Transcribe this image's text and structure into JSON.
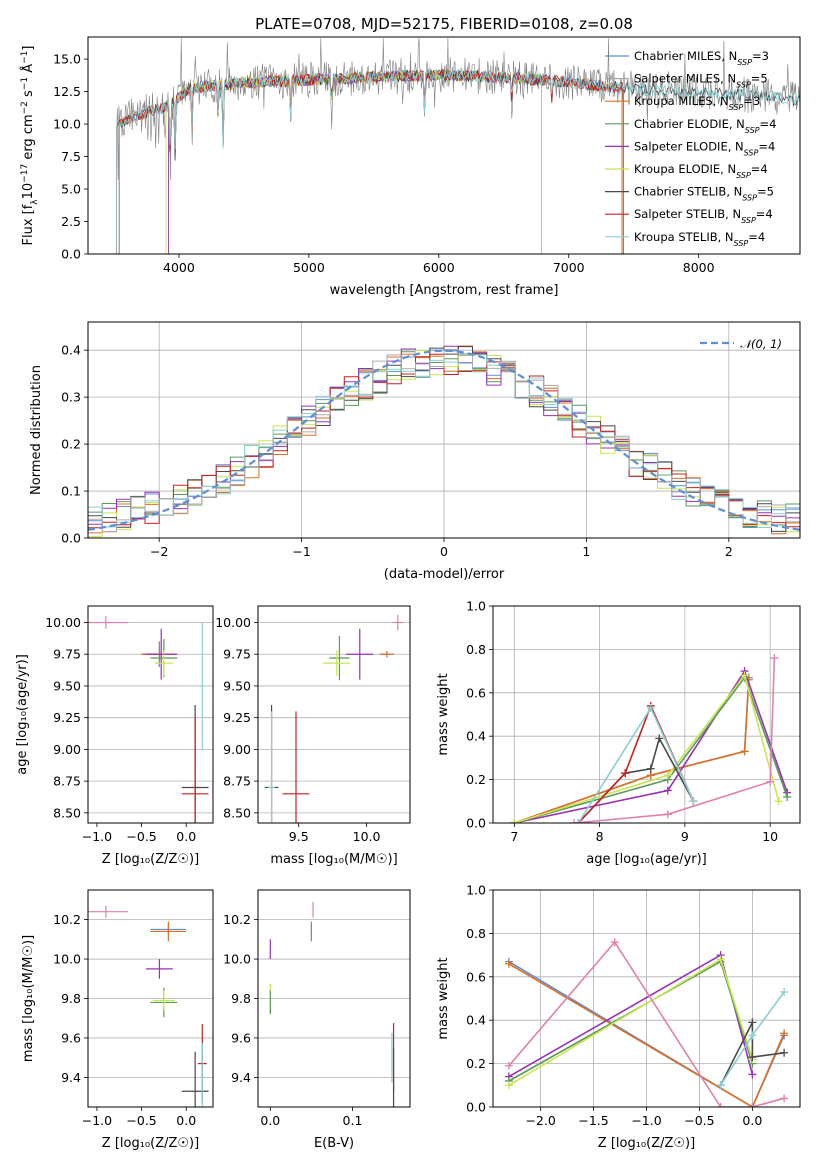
{
  "figure_title": "PLATE=0708, MJD=52175, FIBERID=0108, z=0.08",
  "colors": {
    "chabrier_miles": "#5b8fd6",
    "salpeter_miles": "#aaaaaa",
    "kroupa_miles": "#e07020",
    "chabrier_elodie": "#5a9a5a",
    "salpeter_elodie": "#9a30b8",
    "kroupa_elodie": "#c8e650",
    "chabrier_stelib": "#4a4a4a",
    "salpeter_stelib": "#cc1f1f",
    "kroupa_stelib": "#88cfd6",
    "pink": "#e080b0",
    "gray_spectrum": "#808080",
    "gauss": "#5b8fd6"
  },
  "chart_data": [
    {
      "id": "spectrum",
      "type": "line",
      "xlabel": "wavelength [Angstrom, rest frame]",
      "ylabel": "Flux [f",
      "xlim": [
        3300,
        8780
      ],
      "ylim": [
        0,
        16.7
      ],
      "xticks": [
        "4000",
        "5000",
        "6000",
        "7000",
        "8000"
      ],
      "yticks": [
        "0.0",
        "2.5",
        "5.0",
        "7.5",
        "10.0",
        "12.5",
        "15.0"
      ],
      "legend": [
        "Chabrier MILES, N_SSP=3",
        "Salpeter MILES, N_SSP=5",
        "Kroupa MILES, N_SSP=3",
        "Chabrier ELODIE, N_SSP=4",
        "Salpeter ELODIE, N_SSP=4",
        "Kroupa ELODIE, N_SSP=4",
        "Chabrier STELIB, N_SSP=5",
        "Salpeter STELIB, N_SSP=4",
        "Kroupa STELIB, N_SSP=4"
      ],
      "continuum": [
        [
          3520,
          10.0
        ],
        [
          3700,
          10.8
        ],
        [
          3900,
          11.3
        ],
        [
          4100,
          12.8
        ],
        [
          4500,
          13.2
        ],
        [
          5000,
          13.4
        ],
        [
          5500,
          13.6
        ],
        [
          6000,
          13.8
        ],
        [
          6500,
          13.6
        ],
        [
          7000,
          13.2
        ],
        [
          7400,
          12.8
        ],
        [
          8000,
          12.4
        ],
        [
          8500,
          12.2
        ],
        [
          8780,
          11.8
        ]
      ],
      "absorption_lines": [
        [
          3934,
          6.0
        ],
        [
          3969,
          7.5
        ],
        [
          4102,
          9.5
        ],
        [
          4300,
          10.8
        ],
        [
          4340,
          8.5
        ],
        [
          4861,
          10.5
        ],
        [
          5175,
          10.8
        ],
        [
          5890,
          11.0
        ],
        [
          6563,
          11.5
        ],
        [
          6870,
          12.0
        ],
        [
          7605,
          11.5
        ]
      ]
    },
    {
      "id": "residuals",
      "type": "line",
      "xlabel": "(data-model)/error",
      "ylabel": "Normed distribution",
      "xlim": [
        -2.5,
        2.5
      ],
      "ylim": [
        0,
        0.46
      ],
      "xticks": [
        "−2",
        "−1",
        "0",
        "1",
        "2"
      ],
      "yticks": [
        "0.0",
        "0.1",
        "0.2",
        "0.3",
        "0.4"
      ],
      "gauss_label": "𝒩(0, 1)",
      "grid": true
    },
    {
      "id": "age_vs_Z",
      "type": "scatter",
      "xlabel": "Z [log₁₀(Z/Z☉)]",
      "ylabel": "age  [log₁₀(age/yr)]",
      "xlim": [
        -1.1,
        0.3
      ],
      "ylim": [
        8.42,
        10.13
      ],
      "xticks": [
        "−1.0",
        "−0.5",
        "0.0"
      ],
      "yticks": [
        "8.50",
        "8.75",
        "9.00",
        "9.25",
        "9.50",
        "9.75",
        "10.00"
      ],
      "points": [
        {
          "c": "pink",
          "x": -0.9,
          "xe": 0.5,
          "y": 10.0,
          "ye": 0.1
        },
        {
          "c": "chabrier_miles",
          "x": -0.3,
          "xe": 0.4,
          "y": 9.75,
          "ye": 0.2
        },
        {
          "c": "kroupa_miles",
          "x": -0.3,
          "xe": 0.4,
          "y": 9.75,
          "ye": 0.2
        },
        {
          "c": "salpeter_elodie",
          "x": -0.28,
          "xe": 0.35,
          "y": 9.75,
          "ye": 0.4
        },
        {
          "c": "chabrier_elodie",
          "x": -0.25,
          "xe": 0.3,
          "y": 9.72,
          "ye": 0.3
        },
        {
          "c": "kroupa_elodie",
          "x": -0.25,
          "xe": 0.2,
          "y": 9.68,
          "ye": 0.2
        },
        {
          "c": "chabrier_stelib",
          "x": 0.1,
          "xe": 0.3,
          "y": 8.7,
          "ye": 1.3
        },
        {
          "c": "salpeter_stelib",
          "x": 0.1,
          "xe": 0.3,
          "y": 8.65,
          "ye": 1.2
        },
        {
          "c": "kroupa_stelib",
          "x": 0.18,
          "xe": 0.05,
          "y": 9.5,
          "ye": 1.0
        }
      ]
    },
    {
      "id": "age_vs_mass",
      "type": "scatter",
      "xlabel": "mass [log₁₀(M/M☉)]",
      "ylabel": "",
      "xlim": [
        9.2,
        10.32
      ],
      "ylim": [
        8.42,
        10.13
      ],
      "xticks": [
        "9.5",
        "10.0"
      ],
      "yticks": [
        "8.50",
        "8.75",
        "9.00",
        "9.25",
        "9.50",
        "9.75",
        "10.00"
      ],
      "points": [
        {
          "c": "pink",
          "x": 10.23,
          "xe": 0.08,
          "y": 10.0,
          "ye": 0.12
        },
        {
          "c": "chabrier_miles",
          "x": 10.15,
          "xe": 0.1,
          "y": 9.75,
          "ye": 0.05
        },
        {
          "c": "kroupa_miles",
          "x": 10.15,
          "xe": 0.1,
          "y": 9.75,
          "ye": 0.05
        },
        {
          "c": "salpeter_elodie",
          "x": 9.95,
          "xe": 0.2,
          "y": 9.75,
          "ye": 0.4
        },
        {
          "c": "chabrier_elodie",
          "x": 9.8,
          "xe": 0.15,
          "y": 9.72,
          "ye": 0.35
        },
        {
          "c": "kroupa_elodie",
          "x": 9.78,
          "xe": 0.2,
          "y": 9.68,
          "ye": 0.2
        },
        {
          "c": "chabrier_stelib",
          "x": 9.3,
          "xe": 0.1,
          "y": 8.7,
          "ye": 1.3
        },
        {
          "c": "salpeter_stelib",
          "x": 9.48,
          "xe": 0.2,
          "y": 8.65,
          "ye": 1.3
        },
        {
          "c": "kroupa_stelib",
          "x": 9.3,
          "xe": 0.05,
          "y": 8.7,
          "ye": 1.2
        }
      ]
    },
    {
      "id": "weight_vs_age",
      "type": "line",
      "xlabel": "age  [log₁₀(age/yr)]",
      "ylabel": "mass weight",
      "xlim": [
        6.75,
        10.35
      ],
      "ylim": [
        0,
        1.0
      ],
      "xticks": [
        "7",
        "8",
        "9",
        "10"
      ],
      "yticks": [
        "0.0",
        "0.2",
        "0.4",
        "0.6",
        "0.8",
        "1.0"
      ],
      "grid": true,
      "series": [
        {
          "c": "chabrier_miles",
          "x": [
            7.0,
            8.6,
            9.7,
            9.75
          ],
          "y": [
            0.0,
            0.22,
            0.33,
            0.67
          ]
        },
        {
          "c": "kroupa_miles",
          "x": [
            7.0,
            8.6,
            9.7,
            9.75
          ],
          "y": [
            0.0,
            0.22,
            0.33,
            0.66
          ]
        },
        {
          "c": "salpeter_elodie",
          "x": [
            7.0,
            8.8,
            9.7,
            10.2
          ],
          "y": [
            0.0,
            0.15,
            0.7,
            0.14
          ]
        },
        {
          "c": "chabrier_elodie",
          "x": [
            7.0,
            8.8,
            9.7,
            10.2
          ],
          "y": [
            0.0,
            0.2,
            0.67,
            0.12
          ]
        },
        {
          "c": "kroupa_elodie",
          "x": [
            7.0,
            8.8,
            9.7,
            10.1
          ],
          "y": [
            0.0,
            0.22,
            0.68,
            0.1
          ]
        },
        {
          "c": "chabrier_stelib",
          "x": [
            7.75,
            8.3,
            8.6,
            8.7,
            9.1
          ],
          "y": [
            0.0,
            0.23,
            0.25,
            0.39,
            0.1
          ]
        },
        {
          "c": "salpeter_stelib",
          "x": [
            7.75,
            8.3,
            8.6,
            9.1
          ],
          "y": [
            0.0,
            0.23,
            0.54,
            0.1
          ]
        },
        {
          "c": "kroupa_stelib",
          "x": [
            7.75,
            8.6,
            9.1
          ],
          "y": [
            0.0,
            0.53,
            0.1
          ]
        },
        {
          "c": "pink",
          "x": [
            7.7,
            8.8,
            10.0,
            10.05
          ],
          "y": [
            0.0,
            0.04,
            0.19,
            0.76
          ]
        }
      ]
    },
    {
      "id": "mass_vs_Z",
      "type": "scatter",
      "xlabel": "Z [log₁₀(Z/Z☉)]",
      "ylabel": "mass [log₁₀(M/M☉)]",
      "xlim": [
        -1.1,
        0.3
      ],
      "ylim": [
        9.25,
        10.35
      ],
      "xticks": [
        "−1.0",
        "−0.5",
        "0.0"
      ],
      "yticks": [
        "9.4",
        "9.6",
        "9.8",
        "10.0",
        "10.2"
      ],
      "points": [
        {
          "c": "pink",
          "x": -0.9,
          "xe": 0.5,
          "y": 10.24,
          "ye": 0.06
        },
        {
          "c": "chabrier_miles",
          "x": -0.2,
          "xe": 0.4,
          "y": 10.15,
          "ye": 0.05
        },
        {
          "c": "kroupa_miles",
          "x": -0.2,
          "xe": 0.4,
          "y": 10.14,
          "ye": 0.1
        },
        {
          "c": "salpeter_elodie",
          "x": -0.3,
          "xe": 0.3,
          "y": 9.95,
          "ye": 0.1
        },
        {
          "c": "chabrier_elodie",
          "x": -0.25,
          "xe": 0.3,
          "y": 9.78,
          "ye": 0.15
        },
        {
          "c": "kroupa_elodie",
          "x": -0.25,
          "xe": 0.25,
          "y": 9.79,
          "ye": 0.1
        },
        {
          "c": "chabrier_stelib",
          "x": 0.1,
          "xe": 0.3,
          "y": 9.33,
          "ye": 0.4
        },
        {
          "c": "salpeter_stelib",
          "x": 0.18,
          "xe": 0.1,
          "y": 9.47,
          "ye": 0.4
        },
        {
          "c": "kroupa_stelib",
          "x": 0.18,
          "xe": 0.05,
          "y": 9.4,
          "ye": 0.35
        }
      ]
    },
    {
      "id": "mass_vs_ebv",
      "type": "scatter",
      "xlabel": "E(B-V)",
      "ylabel": "",
      "xlim": [
        -0.015,
        0.17
      ],
      "ylim": [
        9.25,
        10.35
      ],
      "xticks": [
        "0.0",
        "0.1"
      ],
      "yticks": [
        "9.4",
        "9.6",
        "9.8",
        "10.0",
        "10.2"
      ],
      "points": [
        {
          "c": "pink",
          "x": 0.052,
          "y": 10.25,
          "ye": 0.08
        },
        {
          "c": "kroupa_miles",
          "x": 0.05,
          "y": 10.14,
          "ye": 0.1
        },
        {
          "c": "chabrier_miles",
          "x": 0.05,
          "y": 10.15,
          "ye": 0.05
        },
        {
          "c": "salpeter_elodie",
          "x": 0.0,
          "y": 10.05,
          "ye": 0.1
        },
        {
          "c": "kroupa_elodie",
          "x": 0.0,
          "y": 9.8,
          "ye": 0.15
        },
        {
          "c": "chabrier_elodie",
          "x": 0.0,
          "y": 9.78,
          "ye": 0.12
        },
        {
          "c": "salpeter_stelib",
          "x": 0.15,
          "y": 9.5,
          "ye": 0.35
        },
        {
          "c": "chabrier_stelib",
          "x": 0.15,
          "y": 9.4,
          "ye": 0.3
        },
        {
          "c": "kroupa_stelib",
          "x": 0.148,
          "y": 9.5,
          "ye": 0.25
        }
      ]
    },
    {
      "id": "weight_vs_Z",
      "type": "line",
      "xlabel": "Z [log₁₀(Z/Z☉)]",
      "ylabel": "mass weight",
      "xlim": [
        -2.45,
        0.45
      ],
      "ylim": [
        0,
        1.0
      ],
      "xticks": [
        "−2.0",
        "−1.5",
        "−1.0",
        "−0.5",
        "0.0"
      ],
      "yticks": [
        "0.0",
        "0.2",
        "0.4",
        "0.6",
        "0.8",
        "1.0"
      ],
      "grid": true,
      "series": [
        {
          "c": "chabrier_miles",
          "x": [
            -2.3,
            0.0,
            0.3
          ],
          "y": [
            0.67,
            0.0,
            0.33
          ]
        },
        {
          "c": "kroupa_miles",
          "x": [
            -2.3,
            0.0,
            0.3
          ],
          "y": [
            0.66,
            0.0,
            0.34
          ]
        },
        {
          "c": "salpeter_elodie",
          "x": [
            -2.3,
            -0.3,
            0.0
          ],
          "y": [
            0.14,
            0.7,
            0.15
          ]
        },
        {
          "c": "chabrier_elodie",
          "x": [
            -2.3,
            -0.3,
            0.0
          ],
          "y": [
            0.12,
            0.67,
            0.2
          ]
        },
        {
          "c": "kroupa_elodie",
          "x": [
            -2.3,
            -0.3,
            0.0
          ],
          "y": [
            0.1,
            0.68,
            0.22
          ]
        },
        {
          "c": "chabrier_stelib",
          "x": [
            -0.3,
            0.0,
            0.0,
            0.3
          ],
          "y": [
            0.1,
            0.39,
            0.23,
            0.25
          ]
        },
        {
          "c": "kroupa_stelib",
          "x": [
            -0.3,
            0.0,
            0.3
          ],
          "y": [
            0.1,
            0.33,
            0.53
          ]
        },
        {
          "c": "pink",
          "x": [
            -2.3,
            -1.3,
            -0.3,
            0.0,
            0.3
          ],
          "y": [
            0.19,
            0.76,
            0.0,
            0.0,
            0.04
          ]
        }
      ]
    }
  ]
}
